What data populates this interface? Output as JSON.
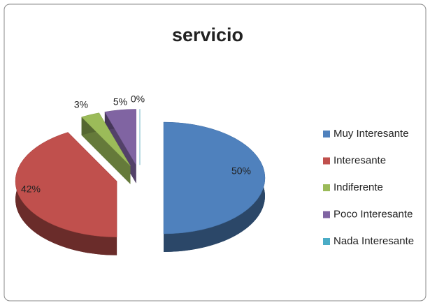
{
  "chart_data": {
    "type": "pie",
    "title": "servicio",
    "categories": [
      "Muy Interesante",
      "Interesante",
      "Indiferente",
      "Poco Interesante",
      "Nada Interesante"
    ],
    "values": [
      50,
      42,
      3,
      5,
      0
    ],
    "value_labels": [
      "50%",
      "42%",
      "3%",
      "5%",
      "0%"
    ],
    "colors": [
      "#4f81bd",
      "#c0504d",
      "#9bbb59",
      "#8064a2",
      "#4bacc6"
    ],
    "legend": "right"
  }
}
